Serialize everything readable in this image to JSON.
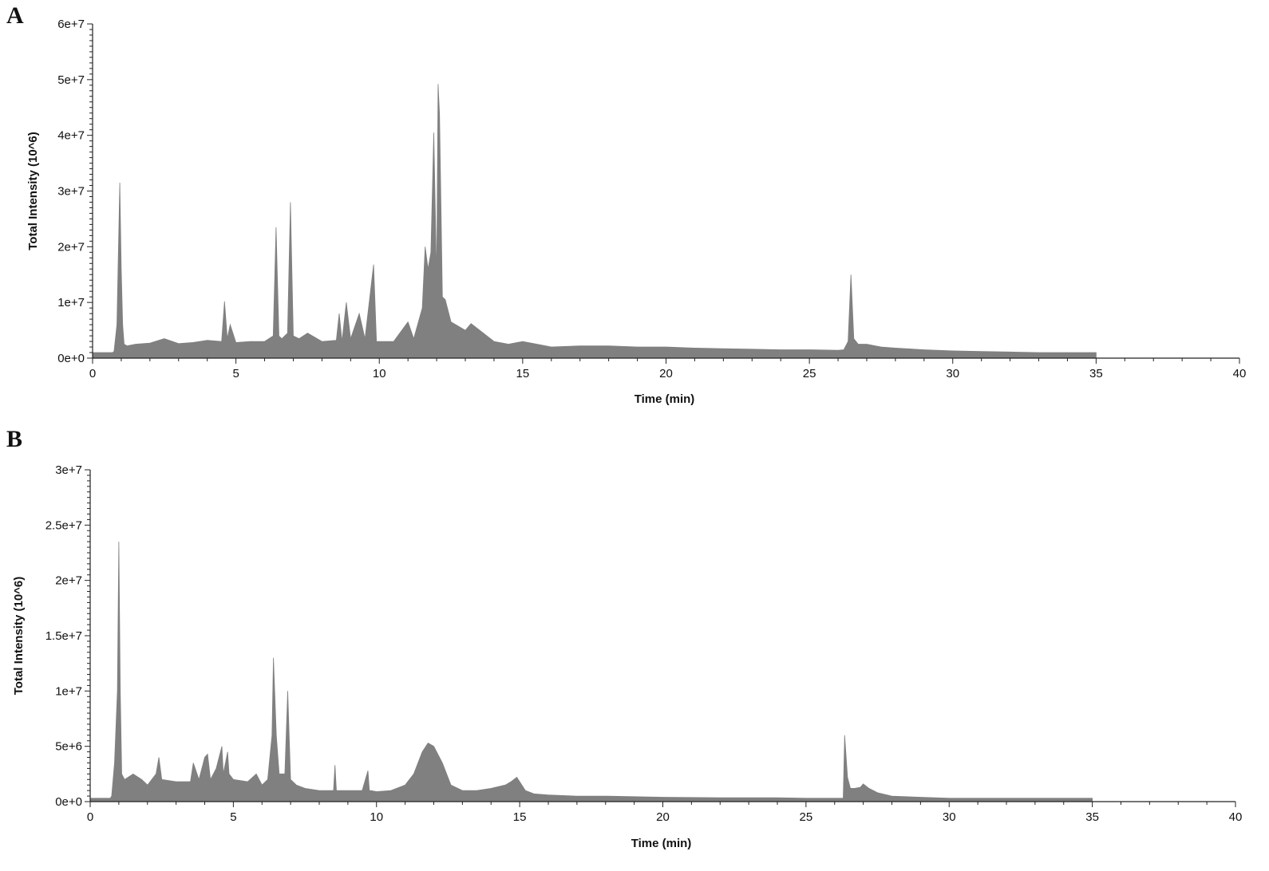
{
  "panels": [
    {
      "letter": "A",
      "chart_data": {
        "type": "area",
        "xlabel": "Time (min)",
        "ylabel": "Total Intensity (10^6)",
        "xlim": [
          0,
          40
        ],
        "ylim": [
          0,
          60000000
        ],
        "xticks": [
          0,
          5,
          10,
          15,
          20,
          25,
          30,
          35,
          40
        ],
        "xtick_labels": [
          "0",
          "5",
          "10",
          "15",
          "20",
          "25",
          "30",
          "35",
          "40"
        ],
        "yticks": [
          0,
          10000000,
          20000000,
          30000000,
          40000000,
          50000000,
          60000000
        ],
        "ytick_labels": [
          "0e+0",
          "1e+7",
          "2e+7",
          "3e+7",
          "4e+7",
          "5e+7",
          "6e+7"
        ],
        "fill_color": "#808080",
        "grid": false,
        "x": [
          0,
          0.7,
          0.75,
          0.85,
          0.95,
          1.0,
          1.05,
          1.1,
          1.2,
          1.5,
          2.0,
          2.5,
          3.0,
          3.5,
          4.0,
          4.5,
          4.6,
          4.7,
          4.8,
          5.0,
          5.5,
          6.0,
          6.3,
          6.4,
          6.5,
          6.6,
          6.8,
          6.9,
          7.0,
          7.2,
          7.5,
          8.0,
          8.5,
          8.6,
          8.7,
          8.85,
          9.0,
          9.3,
          9.5,
          9.8,
          9.9,
          10.5,
          11.0,
          11.2,
          11.5,
          11.6,
          11.7,
          11.8,
          11.9,
          12.0,
          12.05,
          12.1,
          12.2,
          12.3,
          12.5,
          13.0,
          13.2,
          13.5,
          14.0,
          14.5,
          15.0,
          15.5,
          16.0,
          17.0,
          18.0,
          19.0,
          20.0,
          21.0,
          22.0,
          23.0,
          24.0,
          25.0,
          26.0,
          26.2,
          26.35,
          26.45,
          26.55,
          26.7,
          27.0,
          27.5,
          28.0,
          29.0,
          30.0,
          31.0,
          32.0,
          33.0,
          34.0,
          35.0
        ],
        "values": [
          1000000,
          1000000,
          1200000,
          6000000,
          31500000,
          16000000,
          6000000,
          2500000,
          2200000,
          2500000,
          2700000,
          3500000,
          2600000,
          2800000,
          3200000,
          3000000,
          10200000,
          3500000,
          6000000,
          2800000,
          3000000,
          3000000,
          4000000,
          23500000,
          4000000,
          3500000,
          4500000,
          28000000,
          4000000,
          3500000,
          4500000,
          3000000,
          3200000,
          8000000,
          3000000,
          10000000,
          3500000,
          8000000,
          3500000,
          16800000,
          3000000,
          3000000,
          6500000,
          3500000,
          9000000,
          20000000,
          16000000,
          19000000,
          40500000,
          14000000,
          49200000,
          43800000,
          11000000,
          10500000,
          6500000,
          5000000,
          6200000,
          5000000,
          3000000,
          2500000,
          3000000,
          2500000,
          2000000,
          2200000,
          2200000,
          2000000,
          2000000,
          1800000,
          1700000,
          1600000,
          1500000,
          1500000,
          1400000,
          1500000,
          3000000,
          15000000,
          3500000,
          2500000,
          2500000,
          2000000,
          1800000,
          1500000,
          1300000,
          1200000,
          1100000,
          1000000,
          1000000,
          1000000
        ]
      }
    },
    {
      "letter": "B",
      "chart_data": {
        "type": "area",
        "xlabel": "Time (min)",
        "ylabel": "Total Intensity (10^6)",
        "xlim": [
          0,
          40
        ],
        "ylim": [
          0,
          30000000
        ],
        "xticks": [
          0,
          5,
          10,
          15,
          20,
          25,
          30,
          35,
          40
        ],
        "xtick_labels": [
          "0",
          "5",
          "10",
          "15",
          "20",
          "25",
          "30",
          "35",
          "40"
        ],
        "yticks": [
          0,
          5000000,
          10000000,
          15000000,
          20000000,
          25000000,
          30000000
        ],
        "ytick_labels": [
          "0e+0",
          "5e+6",
          "1e+7",
          "1.5e+7",
          "2e+7",
          "2.5e+7",
          "3e+7"
        ],
        "fill_color": "#808080",
        "grid": false,
        "x": [
          0,
          0.7,
          0.75,
          0.85,
          0.95,
          1.0,
          1.05,
          1.1,
          1.2,
          1.5,
          1.8,
          2.0,
          2.3,
          2.4,
          2.5,
          3.0,
          3.5,
          3.6,
          3.8,
          4.0,
          4.1,
          4.2,
          4.4,
          4.6,
          4.65,
          4.8,
          4.85,
          5.0,
          5.5,
          5.8,
          6.0,
          6.2,
          6.35,
          6.4,
          6.5,
          6.6,
          6.8,
          6.9,
          7.0,
          7.2,
          7.5,
          8.0,
          8.5,
          8.55,
          8.6,
          9.0,
          9.5,
          9.7,
          9.75,
          9.8,
          10.0,
          10.5,
          11.0,
          11.3,
          11.6,
          11.8,
          12.0,
          12.3,
          12.6,
          13.0,
          13.5,
          14.0,
          14.5,
          14.7,
          14.9,
          15.0,
          15.2,
          15.5,
          16.0,
          17.0,
          18.0,
          20.0,
          22.0,
          24.0,
          25.0,
          25.5,
          25.9,
          26.0,
          26.2,
          26.3,
          26.35,
          26.45,
          26.55,
          26.7,
          26.9,
          27.0,
          27.2,
          27.5,
          28.0,
          29.0,
          30.0,
          32.0,
          34.0,
          35.0
        ],
        "values": [
          300000,
          300000,
          500000,
          3500000,
          10000000,
          23500000,
          10000000,
          2500000,
          2000000,
          2500000,
          2000000,
          1500000,
          2500000,
          4000000,
          2000000,
          1800000,
          1800000,
          3500000,
          2000000,
          4000000,
          4300000,
          2000000,
          3000000,
          5000000,
          2500000,
          4500000,
          2500000,
          2000000,
          1800000,
          2500000,
          1500000,
          2000000,
          6000000,
          13000000,
          6000000,
          2500000,
          2500000,
          10000000,
          2000000,
          1500000,
          1200000,
          1000000,
          1000000,
          3300000,
          1000000,
          1000000,
          1000000,
          2800000,
          1000000,
          1000000,
          900000,
          1000000,
          1500000,
          2500000,
          4500000,
          5300000,
          5000000,
          3500000,
          1500000,
          1000000,
          1000000,
          1200000,
          1500000,
          1800000,
          2200000,
          1800000,
          1000000,
          700000,
          600000,
          500000,
          500000,
          400000,
          350000,
          350000,
          300000,
          300000,
          300000,
          300000,
          300000,
          300000,
          6000000,
          2200000,
          1200000,
          1200000,
          1300000,
          1600000,
          1200000,
          800000,
          500000,
          400000,
          300000,
          300000,
          300000,
          300000
        ]
      }
    }
  ]
}
